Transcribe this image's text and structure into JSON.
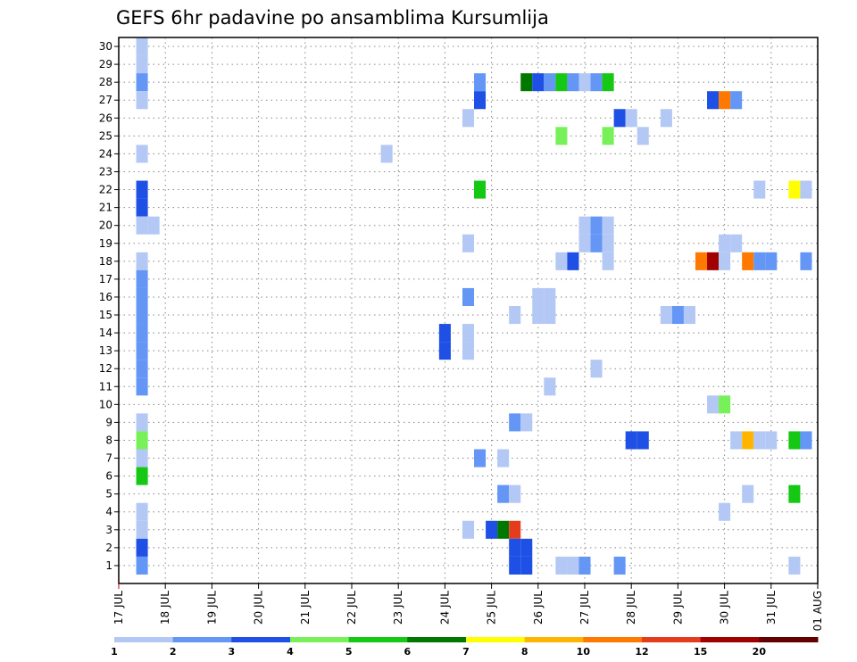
{
  "chart_data": {
    "type": "heatmap",
    "title": "GEFS 6hr padavine po ansamblima Kursumlija",
    "y": [
      1,
      2,
      3,
      4,
      5,
      6,
      7,
      8,
      9,
      10,
      11,
      12,
      13,
      14,
      15,
      16,
      17,
      18,
      19,
      20,
      21,
      22,
      23,
      24,
      25,
      26,
      27,
      28,
      29,
      30
    ],
    "x_ticks": [
      "17 JUL",
      "18 JUL",
      "19 JUL",
      "20 JUL",
      "21 JUL",
      "22 JUL",
      "23 JUL",
      "24 JUL",
      "25 JUL",
      "26 JUL",
      "27 JUL",
      "28 JUL",
      "29 JUL",
      "30 JUL",
      "31 JUL",
      "01 AUG"
    ],
    "x_range": [
      "17 JUL 00",
      "01 AUG 00"
    ],
    "grid": true,
    "colorbar": {
      "placement": "bottom",
      "levels": [
        "1",
        "2",
        "3",
        "4",
        "5",
        "6",
        "7",
        "8",
        "10",
        "12",
        "15",
        "20"
      ],
      "colors": [
        "#b4c8f5",
        "#6496f5",
        "#1e50e6",
        "#78f05a",
        "#14c814",
        "#007800",
        "#ffff00",
        "#ffb400",
        "#ff7800",
        "#e63c1e",
        "#a00000",
        "#640000"
      ]
    },
    "cells": [
      {
        "d": "17 JUL 12",
        "m": 30,
        "c": 0
      },
      {
        "d": "17 JUL 12",
        "m": 29,
        "c": 0
      },
      {
        "d": "17 JUL 12",
        "m": 28,
        "c": 1
      },
      {
        "d": "17 JUL 12",
        "m": 27,
        "c": 0
      },
      {
        "d": "17 JUL 12",
        "m": 24,
        "c": 0
      },
      {
        "d": "17 JUL 12",
        "m": 22,
        "c": 2
      },
      {
        "d": "17 JUL 12",
        "m": 21,
        "c": 2
      },
      {
        "d": "17 JUL 12",
        "m": 20,
        "c": 0
      },
      {
        "d": "17 JUL 18",
        "m": 20,
        "c": 0
      },
      {
        "d": "17 JUL 12",
        "m": 18,
        "c": 0
      },
      {
        "d": "17 JUL 12",
        "m": 17,
        "c": 1
      },
      {
        "d": "17 JUL 12",
        "m": 16,
        "c": 1
      },
      {
        "d": "17 JUL 12",
        "m": 15,
        "c": 1
      },
      {
        "d": "17 JUL 12",
        "m": 14,
        "c": 1
      },
      {
        "d": "17 JUL 12",
        "m": 13,
        "c": 1
      },
      {
        "d": "17 JUL 12",
        "m": 12,
        "c": 1
      },
      {
        "d": "17 JUL 12",
        "m": 11,
        "c": 1
      },
      {
        "d": "17 JUL 12",
        "m": 9,
        "c": 0
      },
      {
        "d": "17 JUL 12",
        "m": 8,
        "c": 3
      },
      {
        "d": "17 JUL 12",
        "m": 7,
        "c": 0
      },
      {
        "d": "17 JUL 12",
        "m": 6,
        "c": 4
      },
      {
        "d": "17 JUL 12",
        "m": 4,
        "c": 0
      },
      {
        "d": "17 JUL 12",
        "m": 3,
        "c": 0
      },
      {
        "d": "17 JUL 12",
        "m": 2,
        "c": 2
      },
      {
        "d": "17 JUL 12",
        "m": 1,
        "c": 1
      },
      {
        "d": "22 JUL 18",
        "m": 24,
        "c": 0
      },
      {
        "d": "24 JUL 00",
        "m": 14,
        "c": 2
      },
      {
        "d": "24 JUL 00",
        "m": 13,
        "c": 2
      },
      {
        "d": "24 JUL 12",
        "m": 26,
        "c": 0
      },
      {
        "d": "24 JUL 12",
        "m": 19,
        "c": 0
      },
      {
        "d": "24 JUL 12",
        "m": 16,
        "c": 1
      },
      {
        "d": "24 JUL 12",
        "m": 14,
        "c": 0
      },
      {
        "d": "24 JUL 12",
        "m": 13,
        "c": 0
      },
      {
        "d": "24 JUL 12",
        "m": 3,
        "c": 0
      },
      {
        "d": "24 JUL 18",
        "m": 28,
        "c": 1
      },
      {
        "d": "24 JUL 18",
        "m": 27,
        "c": 2
      },
      {
        "d": "24 JUL 18",
        "m": 22,
        "c": 4
      },
      {
        "d": "24 JUL 18",
        "m": 7,
        "c": 1
      },
      {
        "d": "25 JUL 00",
        "m": 3,
        "c": 2
      },
      {
        "d": "25 JUL 06",
        "m": 7,
        "c": 0
      },
      {
        "d": "25 JUL 06",
        "m": 5,
        "c": 1
      },
      {
        "d": "25 JUL 06",
        "m": 3,
        "c": 5
      },
      {
        "d": "25 JUL 12",
        "m": 15,
        "c": 0
      },
      {
        "d": "25 JUL 12",
        "m": 9,
        "c": 1
      },
      {
        "d": "25 JUL 12",
        "m": 5,
        "c": 0
      },
      {
        "d": "25 JUL 12",
        "m": 3,
        "c": 9
      },
      {
        "d": "25 JUL 12",
        "m": 2,
        "c": 2
      },
      {
        "d": "25 JUL 12",
        "m": 1,
        "c": 2
      },
      {
        "d": "25 JUL 18",
        "m": 28,
        "c": 5
      },
      {
        "d": "25 JUL 18",
        "m": 9,
        "c": 0
      },
      {
        "d": "25 JUL 18",
        "m": 2,
        "c": 2
      },
      {
        "d": "25 JUL 18",
        "m": 1,
        "c": 2
      },
      {
        "d": "26 JUL 00",
        "m": 28,
        "c": 2
      },
      {
        "d": "26 JUL 00",
        "m": 16,
        "c": 0
      },
      {
        "d": "26 JUL 00",
        "m": 15,
        "c": 0
      },
      {
        "d": "26 JUL 06",
        "m": 28,
        "c": 1
      },
      {
        "d": "26 JUL 06",
        "m": 16,
        "c": 0
      },
      {
        "d": "26 JUL 06",
        "m": 15,
        "c": 0
      },
      {
        "d": "26 JUL 06",
        "m": 11,
        "c": 0
      },
      {
        "d": "26 JUL 12",
        "m": 28,
        "c": 4
      },
      {
        "d": "26 JUL 12",
        "m": 25,
        "c": 3
      },
      {
        "d": "26 JUL 12",
        "m": 18,
        "c": 0
      },
      {
        "d": "26 JUL 12",
        "m": 1,
        "c": 0
      },
      {
        "d": "26 JUL 18",
        "m": 28,
        "c": 1
      },
      {
        "d": "26 JUL 18",
        "m": 18,
        "c": 2
      },
      {
        "d": "26 JUL 18",
        "m": 1,
        "c": 0
      },
      {
        "d": "27 JUL 00",
        "m": 28,
        "c": 0
      },
      {
        "d": "27 JUL 00",
        "m": 20,
        "c": 0
      },
      {
        "d": "27 JUL 00",
        "m": 19,
        "c": 0
      },
      {
        "d": "27 JUL 00",
        "m": 1,
        "c": 1
      },
      {
        "d": "27 JUL 06",
        "m": 28,
        "c": 1
      },
      {
        "d": "27 JUL 06",
        "m": 20,
        "c": 1
      },
      {
        "d": "27 JUL 06",
        "m": 19,
        "c": 1
      },
      {
        "d": "27 JUL 06",
        "m": 12,
        "c": 0
      },
      {
        "d": "27 JUL 12",
        "m": 28,
        "c": 4
      },
      {
        "d": "27 JUL 12",
        "m": 25,
        "c": 3
      },
      {
        "d": "27 JUL 12",
        "m": 20,
        "c": 0
      },
      {
        "d": "27 JUL 12",
        "m": 19,
        "c": 0
      },
      {
        "d": "27 JUL 12",
        "m": 18,
        "c": 0
      },
      {
        "d": "27 JUL 18",
        "m": 26,
        "c": 2
      },
      {
        "d": "27 JUL 18",
        "m": 1,
        "c": 1
      },
      {
        "d": "28 JUL 00",
        "m": 26,
        "c": 0
      },
      {
        "d": "28 JUL 00",
        "m": 8,
        "c": 2
      },
      {
        "d": "28 JUL 06",
        "m": 25,
        "c": 0
      },
      {
        "d": "28 JUL 06",
        "m": 8,
        "c": 2
      },
      {
        "d": "28 JUL 18",
        "m": 26,
        "c": 0
      },
      {
        "d": "28 JUL 18",
        "m": 15,
        "c": 0
      },
      {
        "d": "29 JUL 00",
        "m": 15,
        "c": 1
      },
      {
        "d": "29 JUL 06",
        "m": 15,
        "c": 0
      },
      {
        "d": "29 JUL 12",
        "m": 18,
        "c": 8
      },
      {
        "d": "29 JUL 18",
        "m": 27,
        "c": 2
      },
      {
        "d": "29 JUL 18",
        "m": 18,
        "c": 10
      },
      {
        "d": "29 JUL 18",
        "m": 10,
        "c": 0
      },
      {
        "d": "30 JUL 00",
        "m": 27,
        "c": 8
      },
      {
        "d": "30 JUL 00",
        "m": 19,
        "c": 0
      },
      {
        "d": "30 JUL 00",
        "m": 18,
        "c": 0
      },
      {
        "d": "30 JUL 00",
        "m": 10,
        "c": 3
      },
      {
        "d": "30 JUL 00",
        "m": 4,
        "c": 0
      },
      {
        "d": "30 JUL 06",
        "m": 27,
        "c": 1
      },
      {
        "d": "30 JUL 06",
        "m": 19,
        "c": 0
      },
      {
        "d": "30 JUL 06",
        "m": 8,
        "c": 0
      },
      {
        "d": "30 JUL 12",
        "m": 18,
        "c": 8
      },
      {
        "d": "30 JUL 12",
        "m": 8,
        "c": 7
      },
      {
        "d": "30 JUL 12",
        "m": 5,
        "c": 0
      },
      {
        "d": "30 JUL 18",
        "m": 22,
        "c": 0
      },
      {
        "d": "30 JUL 18",
        "m": 18,
        "c": 1
      },
      {
        "d": "30 JUL 18",
        "m": 8,
        "c": 0
      },
      {
        "d": "31 JUL 00",
        "m": 18,
        "c": 1
      },
      {
        "d": "31 JUL 00",
        "m": 8,
        "c": 0
      },
      {
        "d": "31 JUL 12",
        "m": 22,
        "c": 6
      },
      {
        "d": "31 JUL 12",
        "m": 8,
        "c": 4
      },
      {
        "d": "31 JUL 12",
        "m": 5,
        "c": 4
      },
      {
        "d": "31 JUL 12",
        "m": 1,
        "c": 0
      },
      {
        "d": "31 JUL 18",
        "m": 22,
        "c": 0
      },
      {
        "d": "31 JUL 18",
        "m": 18,
        "c": 1
      },
      {
        "d": "31 JUL 18",
        "m": 8,
        "c": 1
      }
    ]
  }
}
